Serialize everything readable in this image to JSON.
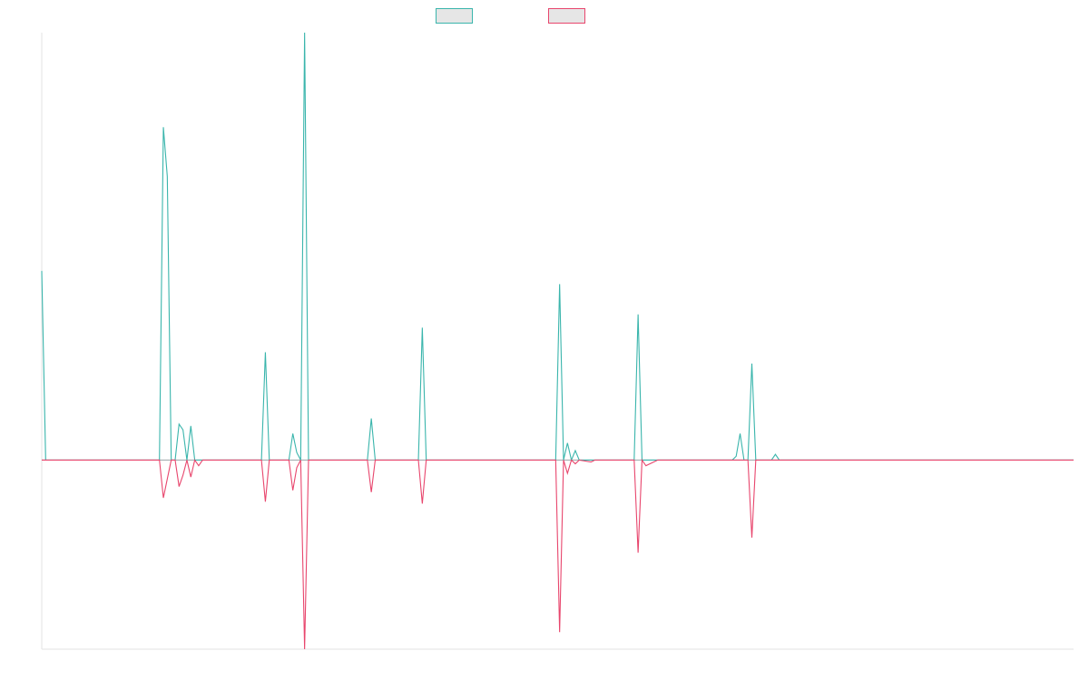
{
  "chart_data": {
    "type": "line",
    "title": "",
    "xlabel": "",
    "ylabel": "",
    "legend_position": "top-center",
    "grid": false,
    "x_range": [
      0,
      263
    ],
    "y_range": [
      -1.0,
      2.26
    ],
    "series": [
      {
        "legend_swatch_fill": "#e6e6e6",
        "color": "#3ab5ac",
        "points": [
          [
            0,
            1.0
          ],
          [
            1,
            0
          ],
          [
            2,
            0
          ],
          [
            30,
            0
          ],
          [
            31,
            1.76
          ],
          [
            32,
            1.5
          ],
          [
            33,
            0
          ],
          [
            34,
            0
          ],
          [
            35,
            0.19
          ],
          [
            36,
            0.16
          ],
          [
            37,
            0
          ],
          [
            38,
            0.18
          ],
          [
            39,
            0
          ],
          [
            40,
            0
          ],
          [
            41,
            0
          ],
          [
            42,
            0
          ],
          [
            56,
            0
          ],
          [
            57,
            0.57
          ],
          [
            58,
            0
          ],
          [
            63,
            0
          ],
          [
            64,
            0.14
          ],
          [
            65,
            0.04
          ],
          [
            66,
            0
          ],
          [
            67,
            2.26
          ],
          [
            68,
            0
          ],
          [
            83,
            0
          ],
          [
            84,
            0.22
          ],
          [
            85,
            0
          ],
          [
            96,
            0
          ],
          [
            97,
            0.7
          ],
          [
            98,
            0
          ],
          [
            131,
            0
          ],
          [
            132,
            0.93
          ],
          [
            133,
            0
          ],
          [
            134,
            0.09
          ],
          [
            135,
            0
          ],
          [
            136,
            0.05
          ],
          [
            137,
            0
          ],
          [
            140,
            0
          ],
          [
            141,
            0
          ],
          [
            151,
            0
          ],
          [
            152,
            0.77
          ],
          [
            153,
            0
          ],
          [
            154,
            0
          ],
          [
            156,
            0
          ],
          [
            157,
            0
          ],
          [
            175,
            0
          ],
          [
            176,
            0
          ],
          [
            177,
            0.02
          ],
          [
            178,
            0.14
          ],
          [
            179,
            0
          ],
          [
            180,
            0
          ],
          [
            181,
            0.51
          ],
          [
            182,
            0
          ],
          [
            186,
            0
          ],
          [
            187,
            0.03
          ],
          [
            188,
            0
          ],
          [
            263,
            0
          ]
        ]
      },
      {
        "legend_swatch_fill": "#e6e6e6",
        "color": "#e8466d",
        "points": [
          [
            0,
            0
          ],
          [
            2,
            0
          ],
          [
            30,
            0
          ],
          [
            31,
            -0.2
          ],
          [
            32,
            -0.1
          ],
          [
            33,
            0
          ],
          [
            34,
            0
          ],
          [
            35,
            -0.14
          ],
          [
            36,
            -0.08
          ],
          [
            37,
            0
          ],
          [
            38,
            -0.09
          ],
          [
            39,
            0
          ],
          [
            40,
            -0.03
          ],
          [
            41,
            0
          ],
          [
            42,
            0
          ],
          [
            56,
            0
          ],
          [
            57,
            -0.22
          ],
          [
            58,
            0
          ],
          [
            63,
            0
          ],
          [
            64,
            -0.16
          ],
          [
            65,
            -0.04
          ],
          [
            66,
            0
          ],
          [
            67,
            -1.0
          ],
          [
            68,
            0
          ],
          [
            83,
            0
          ],
          [
            84,
            -0.17
          ],
          [
            85,
            0
          ],
          [
            96,
            0
          ],
          [
            97,
            -0.23
          ],
          [
            98,
            0
          ],
          [
            131,
            0
          ],
          [
            132,
            -0.91
          ],
          [
            133,
            0
          ],
          [
            134,
            -0.07
          ],
          [
            135,
            0
          ],
          [
            136,
            -0.02
          ],
          [
            137,
            0
          ],
          [
            140,
            -0.01
          ],
          [
            141,
            0
          ],
          [
            151,
            0
          ],
          [
            152,
            -0.49
          ],
          [
            153,
            0
          ],
          [
            154,
            -0.03
          ],
          [
            156,
            -0.01
          ],
          [
            157,
            0
          ],
          [
            175,
            0
          ],
          [
            176,
            0
          ],
          [
            177,
            0
          ],
          [
            178,
            0
          ],
          [
            179,
            0
          ],
          [
            180,
            0
          ],
          [
            181,
            -0.41
          ],
          [
            182,
            0
          ],
          [
            263,
            0
          ]
        ]
      }
    ]
  }
}
